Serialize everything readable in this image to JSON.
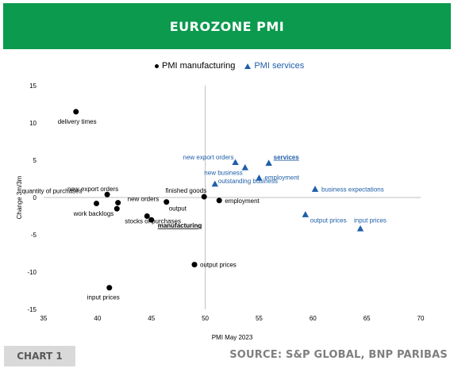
{
  "header": {
    "title": "EUROZONE PMI"
  },
  "footer": {
    "tag": "CHART 1",
    "source": "SOURCE: S&P GLOBAL, BNP PARIBAS"
  },
  "colors": {
    "header_bg": "#0b9a4e",
    "manufacturing": "#000000",
    "services": "#1f5fa8",
    "divider": "#bfbfbf"
  },
  "chart_data": {
    "type": "scatter",
    "xlabel": "PMI May 2023",
    "ylabel": "Change 3m/3m",
    "xlim": [
      35,
      70
    ],
    "ylim": [
      -15,
      15
    ],
    "xticks": [
      35,
      40,
      45,
      50,
      55,
      60,
      65,
      70
    ],
    "yticks": [
      15,
      10,
      5,
      0,
      -5,
      -10,
      -15
    ],
    "crosshair": {
      "x": 50,
      "y": 0
    },
    "legend": [
      "PMI manufacturing",
      "PMI services"
    ],
    "series": [
      {
        "name": "PMI manufacturing",
        "marker": "circle",
        "points": [
          {
            "label": "delivery times",
            "x": 38.0,
            "y": 11.5
          },
          {
            "label": "new export orders",
            "x": 40.9,
            "y": 0.4
          },
          {
            "label": "quantity of purchases",
            "x": 39.9,
            "y": -0.8
          },
          {
            "label": "new orders",
            "x": 41.9,
            "y": -0.7
          },
          {
            "label": "work backlogs",
            "x": 41.8,
            "y": -1.5
          },
          {
            "label": "stocks of purchases",
            "x": 44.6,
            "y": -2.5
          },
          {
            "label": "manufacturing",
            "x": 45.0,
            "y": -3.0,
            "emphasis": true
          },
          {
            "label": "output",
            "x": 46.4,
            "y": -0.6
          },
          {
            "label": "finished goods",
            "x": 49.9,
            "y": 0.1
          },
          {
            "label": "employment",
            "x": 51.3,
            "y": -0.4
          },
          {
            "label": "output prices",
            "x": 49.0,
            "y": -9.0
          },
          {
            "label": "input prices",
            "x": 41.1,
            "y": -12.1
          }
        ]
      },
      {
        "name": "PMI services",
        "marker": "triangle",
        "points": [
          {
            "label": "new export orders",
            "x": 52.8,
            "y": 4.7
          },
          {
            "label": "new business",
            "x": 53.7,
            "y": 4.0
          },
          {
            "label": "services",
            "x": 55.9,
            "y": 4.6,
            "emphasis": true
          },
          {
            "label": "employment",
            "x": 55.0,
            "y": 2.6
          },
          {
            "label": "outstanding business",
            "x": 50.9,
            "y": 1.8
          },
          {
            "label": "business expectations",
            "x": 60.2,
            "y": 1.1
          },
          {
            "label": "output prices",
            "x": 59.3,
            "y": -2.3
          },
          {
            "label": "input prices",
            "x": 64.4,
            "y": -4.2
          }
        ]
      }
    ]
  }
}
